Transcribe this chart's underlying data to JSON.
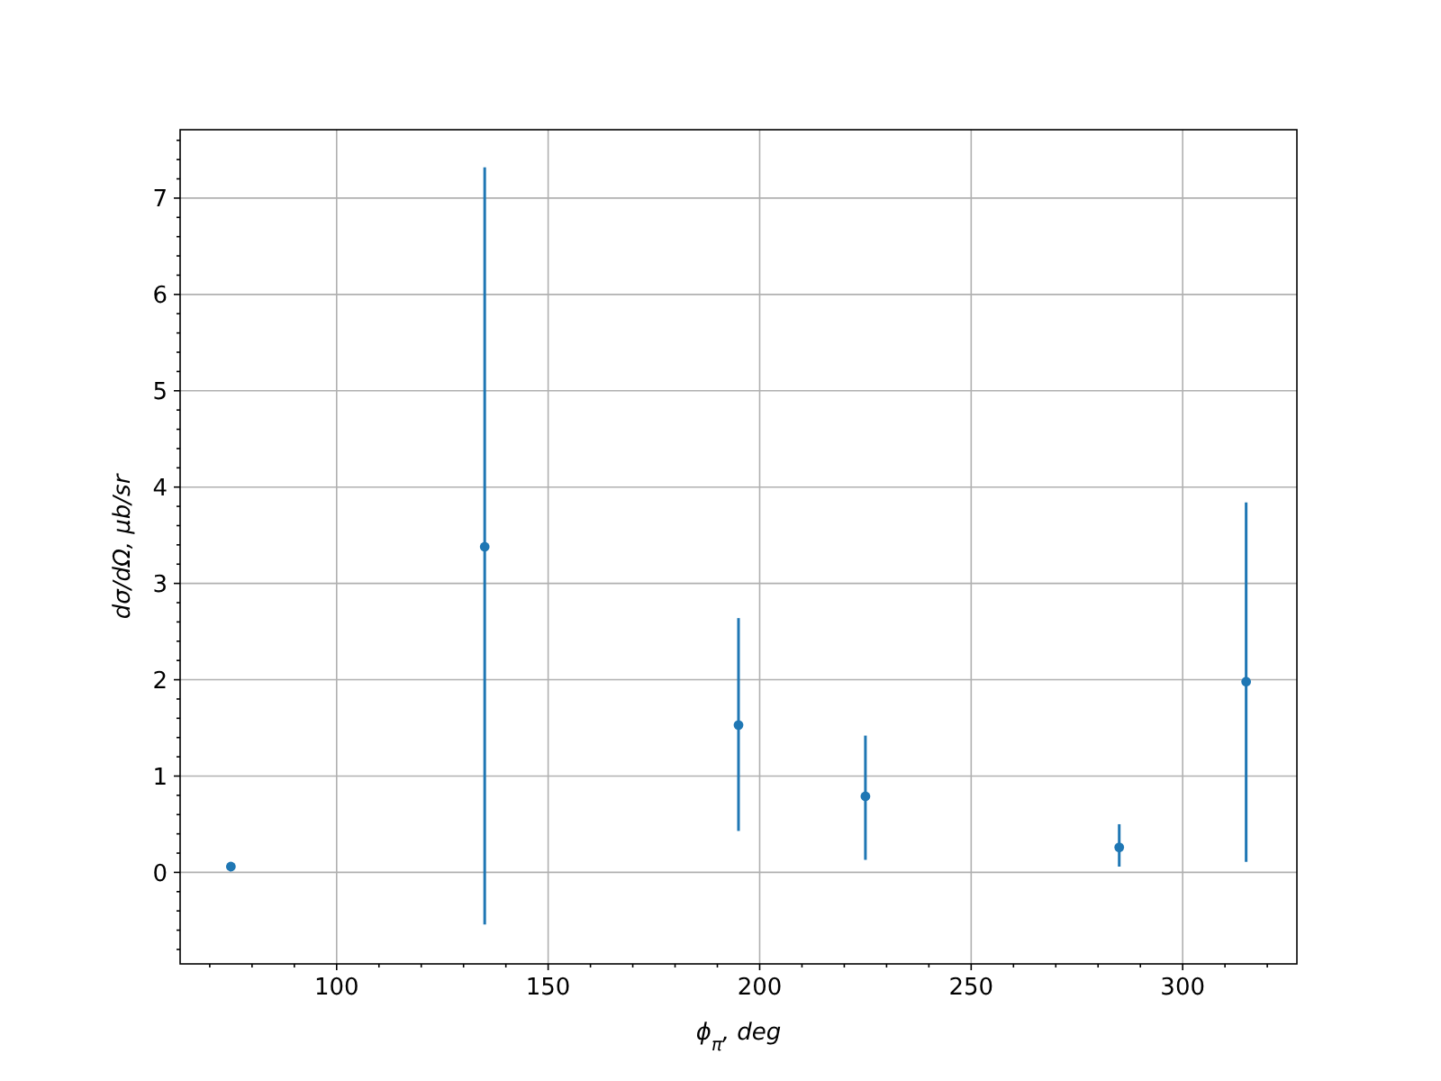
{
  "chart_data": {
    "type": "scatter",
    "xlabel": "ϕ$_{π}$, deg",
    "ylabel": "dσ/dΩ, μb/sr",
    "x": [
      75,
      135,
      195,
      225,
      285,
      315
    ],
    "series": [
      {
        "color": "#1f77b4",
        "values": [
          0.06,
          3.38,
          1.53,
          0.79,
          0.26,
          1.98
        ],
        "errors": [
          null,
          [
            -0.54,
            7.32
          ],
          [
            0.43,
            2.64
          ],
          [
            0.13,
            1.42
          ],
          [
            0.06,
            0.5
          ],
          [
            0.11,
            3.84
          ]
        ]
      }
    ],
    "xlim": [
      63,
      327
    ],
    "ylim": [
      -0.95,
      7.71
    ],
    "xticks": [
      {
        "value": 70,
        "label": null
      },
      {
        "value": 80,
        "label": null
      },
      {
        "value": 90,
        "label": null
      },
      100,
      {
        "value": 110,
        "label": null
      },
      {
        "value": 120,
        "label": null
      },
      {
        "value": 130,
        "label": null
      },
      {
        "value": 140,
        "label": null
      },
      150,
      {
        "value": 160,
        "label": null
      },
      {
        "value": 170,
        "label": null
      },
      {
        "value": 180,
        "label": null
      },
      {
        "value": 190,
        "label": null
      },
      200,
      {
        "value": 210,
        "label": null
      },
      {
        "value": 220,
        "label": null
      },
      {
        "value": 230,
        "label": null
      },
      {
        "value": 240,
        "label": null
      },
      250,
      {
        "value": 260,
        "label": null
      },
      {
        "value": 270,
        "label": null
      },
      {
        "value": 280,
        "label": null
      },
      {
        "value": 290,
        "label": null
      },
      300,
      {
        "value": 310,
        "label": null
      },
      {
        "value": 320,
        "label": null
      }
    ],
    "yticks": [
      {
        "value": -0.8,
        "label": null
      },
      {
        "value": -0.6,
        "label": null
      },
      {
        "value": -0.4,
        "label": null
      },
      {
        "value": -0.2,
        "label": null
      },
      0,
      {
        "value": 0.2,
        "label": null
      },
      {
        "value": 0.4,
        "label": null
      },
      {
        "value": 0.6,
        "label": null
      },
      {
        "value": 0.8,
        "label": null
      },
      1,
      {
        "value": 1.2,
        "label": null
      },
      {
        "value": 1.4,
        "label": null
      },
      {
        "value": 1.6,
        "label": null
      },
      {
        "value": 1.8,
        "label": null
      },
      2,
      {
        "value": 2.2,
        "label": null
      },
      {
        "value": 2.4,
        "label": null
      },
      {
        "value": 2.6,
        "label": null
      },
      {
        "value": 2.8,
        "label": null
      },
      3,
      {
        "value": 3.2,
        "label": null
      },
      {
        "value": 3.4,
        "label": null
      },
      {
        "value": 3.6,
        "label": null
      },
      {
        "value": 3.8,
        "label": null
      },
      4,
      {
        "value": 4.2,
        "label": null
      },
      {
        "value": 4.4,
        "label": null
      },
      {
        "value": 4.6,
        "label": null
      },
      {
        "value": 4.8,
        "label": null
      },
      5,
      {
        "value": 5.2,
        "label": null
      },
      {
        "value": 5.4,
        "label": null
      },
      {
        "value": 5.6,
        "label": null
      },
      {
        "value": 5.8,
        "label": null
      },
      6,
      {
        "value": 6.2,
        "label": null
      },
      {
        "value": 6.4,
        "label": null
      },
      {
        "value": 6.6,
        "label": null
      },
      {
        "value": 6.8,
        "label": null
      },
      7,
      {
        "value": 7.2,
        "label": null
      },
      {
        "value": 7.4,
        "label": null
      },
      {
        "value": 7.6,
        "label": null
      }
    ],
    "grid": true,
    "marker": "circle"
  }
}
